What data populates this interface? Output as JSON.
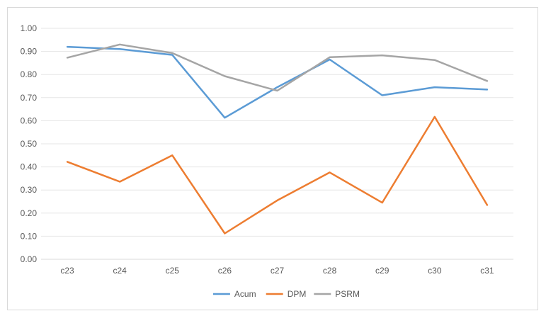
{
  "chart_data": {
    "type": "line",
    "categories": [
      "c23",
      "c24",
      "c25",
      "c26",
      "c27",
      "c28",
      "c29",
      "c30",
      "c31"
    ],
    "series": [
      {
        "name": "Acum",
        "color": "#5b9bd5",
        "values": [
          0.92,
          0.91,
          0.885,
          0.613,
          0.745,
          0.865,
          0.71,
          0.745,
          0.735
        ]
      },
      {
        "name": "DPM",
        "color": "#ed7d31",
        "values": [
          0.422,
          0.336,
          0.45,
          0.112,
          0.255,
          0.376,
          0.245,
          0.617,
          0.235
        ]
      },
      {
        "name": "PSRM",
        "color": "#a5a5a5",
        "values": [
          0.873,
          0.93,
          0.893,
          0.793,
          0.73,
          0.875,
          0.883,
          0.863,
          0.772
        ]
      }
    ],
    "yticks": [
      "0.00",
      "0.10",
      "0.20",
      "0.30",
      "0.40",
      "0.50",
      "0.60",
      "0.70",
      "0.80",
      "0.90",
      "1.00"
    ],
    "ylim": [
      0,
      1
    ],
    "grid": true,
    "legend": "bottom"
  }
}
